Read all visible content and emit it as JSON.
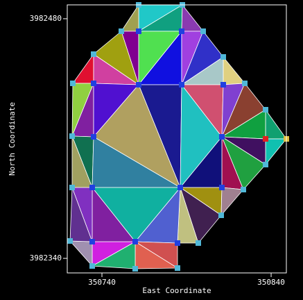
{
  "chart_data": {
    "type": "mesh",
    "xlabel": "East Coordinate",
    "ylabel": "North Coordinate",
    "xlim": [
      350719.5,
      350849
    ],
    "ylim": [
      3982331.5,
      3982488.1
    ],
    "xticks": [
      350740,
      350840
    ],
    "yticks": [
      3982340,
      3982480
    ]
  }
}
